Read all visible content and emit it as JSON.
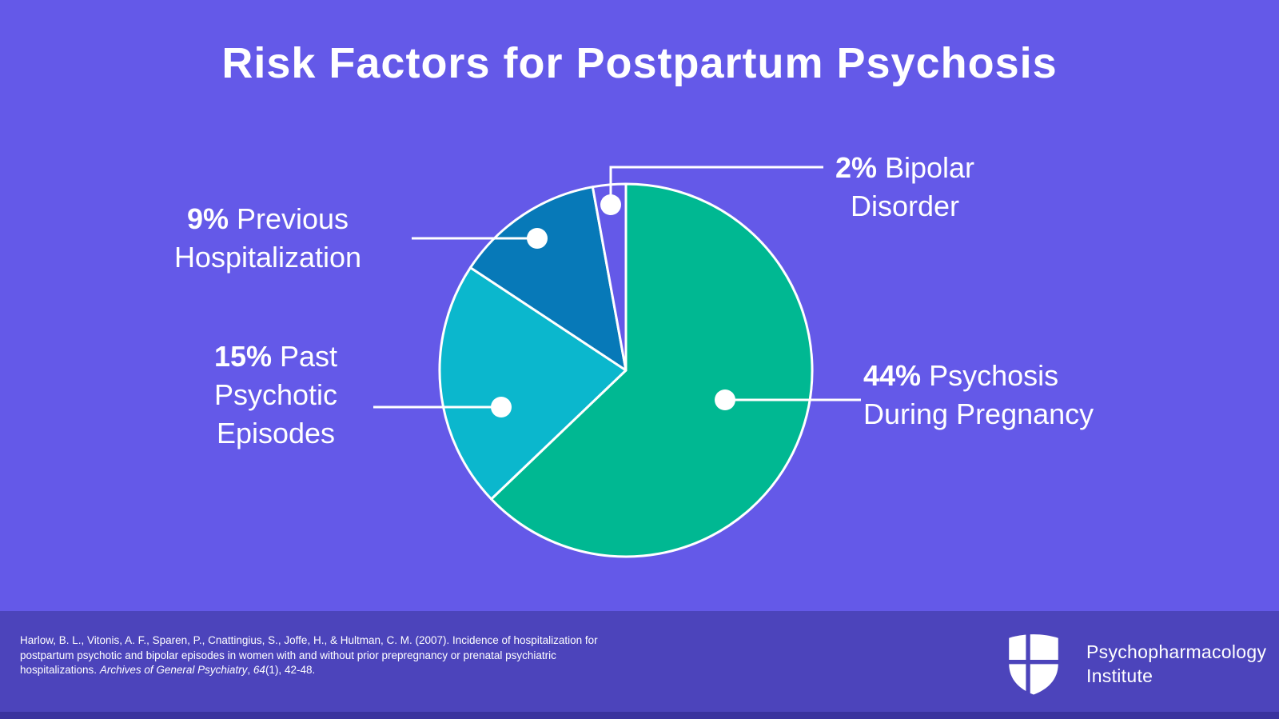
{
  "title": "Risk Factors for Postpartum Psychosis",
  "colors": {
    "background": "#6459e8",
    "footer_background": "#4c44bb",
    "footer_edge": "#3a339e",
    "text": "#ffffff",
    "callout": "#ffffff"
  },
  "chart_data": {
    "type": "pie",
    "title": "Risk Factors for Postpartum Psychosis",
    "start_angle_deg": 0,
    "direction": "clockwise",
    "legend_position": "callout-labels",
    "note": "slice percentages sum to 70; arc angles are normalized to the total",
    "slices": [
      {
        "id": "psychosis-during-pregnancy",
        "label": "Psychosis During Pregnancy",
        "value_pct": 44,
        "color": "#00b892"
      },
      {
        "id": "past-psychotic-episodes",
        "label": "Past Psychotic Episodes",
        "value_pct": 15,
        "color": "#0bb7cd"
      },
      {
        "id": "previous-hospitalization",
        "label": "Previous Hospitalization",
        "value_pct": 9,
        "color": "#0779b8"
      },
      {
        "id": "bipolar-disorder",
        "label": "Bipolar Disorder",
        "value_pct": 2,
        "color": "#6459e8"
      }
    ]
  },
  "labels": {
    "bipolar": {
      "bold": "2%",
      "after_bold": " Bipolar",
      "line2": "Disorder"
    },
    "prev_hosp": {
      "bold": "9%",
      "after_bold": " Previous",
      "line2": "Hospitalization"
    },
    "past_psych": {
      "bold": "15%",
      "after_bold": " Past",
      "line2": "Psychotic",
      "line3": "Episodes"
    },
    "psych_preg": {
      "bold": "44%",
      "after_bold": " Psychosis",
      "line2": "During Pregnancy"
    }
  },
  "citation": {
    "line1": "Harlow, B. L., Vitonis, A. F., Sparen, P., Cnattingius, S., Joffe, H., & Hultman, C. M. (2007). Incidence of hospitalization for",
    "line2": "postpartum psychotic and bipolar episodes in women with and without prior prepregnancy or prenatal psychiatric",
    "line3_before": "hospitalizations. ",
    "line3_journal": "Archives of General Psychiatry",
    "line3_mid": ", ",
    "line3_volume": "64",
    "line3_after": "(1), 42-48."
  },
  "logo": {
    "line1": "Psychopharmacology",
    "line2": "Institute"
  }
}
